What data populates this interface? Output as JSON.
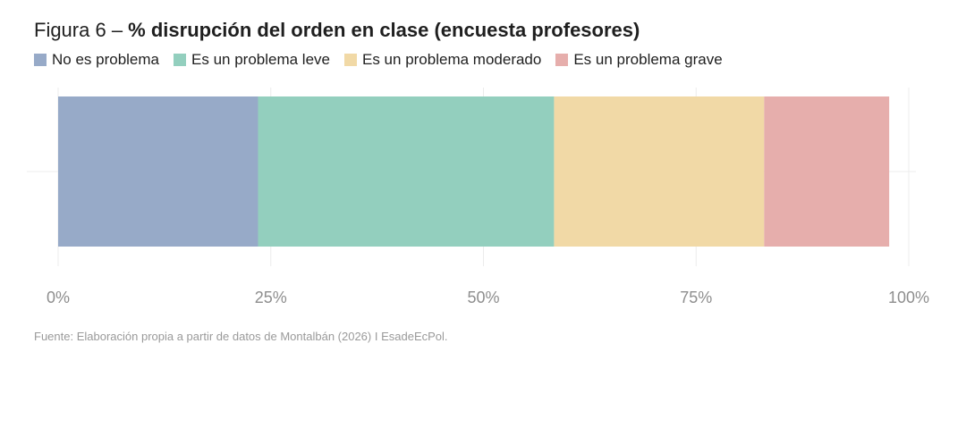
{
  "title": {
    "prefix": "Figura 6 – ",
    "main": "% disrupción del orden en clase (encuesta profesores)"
  },
  "colors": {
    "no_es_problema": "#97aac8",
    "leve": "#93cfbe",
    "moderado": "#f1d9a6",
    "grave": "#e6aeac"
  },
  "source": "Fuente: Elaboración propia a partir de datos de Montalbán (2026) I EsadeEcPol.",
  "chart_data": {
    "type": "bar",
    "orientation": "horizontal",
    "stacked": true,
    "categories": [
      ""
    ],
    "series": [
      {
        "name": "No es problema",
        "values": [
          23.5
        ],
        "color": "#97aac8"
      },
      {
        "name": "Es un problema leve",
        "values": [
          34.8
        ],
        "color": "#93cfbe"
      },
      {
        "name": "Es un problema moderado",
        "values": [
          24.7
        ],
        "color": "#f1d9a6"
      },
      {
        "name": "Es un problema grave",
        "values": [
          14.7
        ],
        "color": "#e6aeac"
      }
    ],
    "xlim": [
      0,
      100
    ],
    "x_ticks": [
      {
        "value": 0,
        "label": "0%"
      },
      {
        "value": 25,
        "label": "25%"
      },
      {
        "value": 50,
        "label": "50%"
      },
      {
        "value": 75,
        "label": "75%"
      },
      {
        "value": 100,
        "label": "100%"
      }
    ],
    "grid": true,
    "legend_position": "top-left"
  }
}
